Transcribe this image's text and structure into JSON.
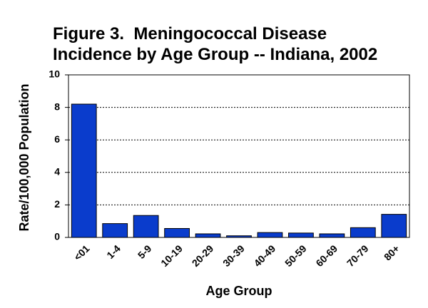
{
  "chart_data": {
    "type": "bar",
    "title": [
      "Figure 3.  Meningococcal Disease",
      "Incidence by Age Group -- Indiana, 2002"
    ],
    "x_label": "Age Group",
    "y_label": "Rate/100,000 Population",
    "categories": [
      "<01",
      "1-4",
      "5-9",
      "10-19",
      "20-29",
      "30-39",
      "40-49",
      "50-59",
      "60-69",
      "70-79",
      "80+"
    ],
    "values": [
      8.2,
      0.85,
      1.35,
      0.55,
      0.22,
      0.1,
      0.3,
      0.27,
      0.22,
      0.6,
      1.42
    ],
    "color": "#0a3ccc",
    "ylim": [
      0,
      10
    ],
    "yticks": [
      0,
      2,
      4,
      6,
      8,
      10
    ],
    "grid": true
  }
}
